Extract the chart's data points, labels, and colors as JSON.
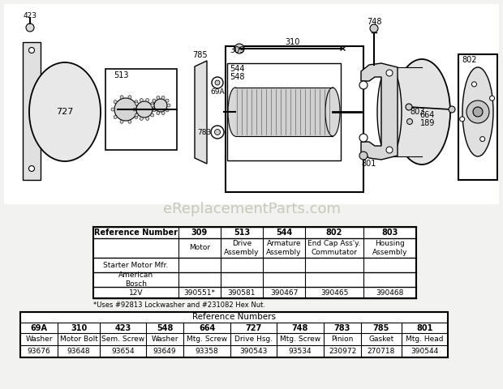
{
  "bg_color": "#ffffff",
  "watermark": "eReplacementParts.com",
  "table1": {
    "col_headers": [
      "Reference Number",
      "309",
      "513",
      "544",
      "802",
      "803"
    ],
    "row1_cells": [
      "",
      "Motor",
      "Drive\nAssembly",
      "Armature\nAssembly",
      "End Cap Ass'y.\nCommutator",
      "Housing\nAssembly"
    ],
    "row2_cells": [
      "Starter Motor Mfr.",
      "",
      "",
      "",
      "",
      ""
    ],
    "row3_cells": [
      "American\nBosch",
      "",
      "",
      "",
      "",
      ""
    ],
    "row4_cells": [
      "12V",
      "390551*",
      "390581",
      "390467",
      "390465",
      "390468"
    ],
    "footnote": "*Uses #92813 Lockwasher and #231082 Hex Nut."
  },
  "table2": {
    "span_header": "Reference Numbers",
    "ref_nums": [
      "69A",
      "310",
      "423",
      "548",
      "664",
      "727",
      "748",
      "783",
      "785",
      "801"
    ],
    "desc_row": [
      "Washer",
      "Motor Bolt",
      "Sem. Screw",
      "Washer",
      "Mtg. Screw",
      "Drive Hsg.",
      "Mtg. Screw",
      "Pinion",
      "Gasket",
      "Mtg. Head"
    ],
    "part_row": [
      "93676",
      "93648",
      "93654",
      "93649",
      "93358",
      "390543",
      "93534",
      "230972",
      "270718",
      "390544"
    ]
  }
}
